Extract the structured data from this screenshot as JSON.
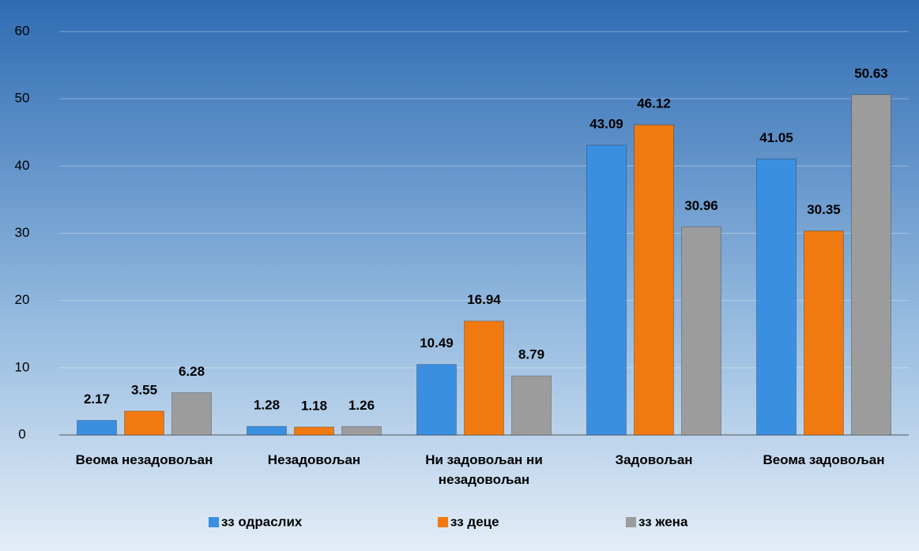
{
  "chart_data": {
    "type": "bar",
    "categories": [
      "Веома незадовољан",
      "Незадовољан",
      "Ни задовољан ни незадовољан",
      "Задовољан",
      "Веома задовољан"
    ],
    "series": [
      {
        "name": "зз одраслих",
        "color": "#3b8fe0",
        "values": [
          2.17,
          1.28,
          10.49,
          43.09,
          41.05
        ]
      },
      {
        "name": "зз деце",
        "color": "#f07a10",
        "values": [
          3.55,
          1.18,
          16.94,
          46.12,
          30.35
        ]
      },
      {
        "name": "зз жена",
        "color": "#9c9c9c",
        "values": [
          6.28,
          1.26,
          8.79,
          30.96,
          50.63
        ]
      }
    ],
    "ylim": [
      0,
      60
    ],
    "yticks": [
      0,
      10,
      20,
      30,
      40,
      50,
      60
    ],
    "grid": true,
    "legend": "bottom"
  }
}
